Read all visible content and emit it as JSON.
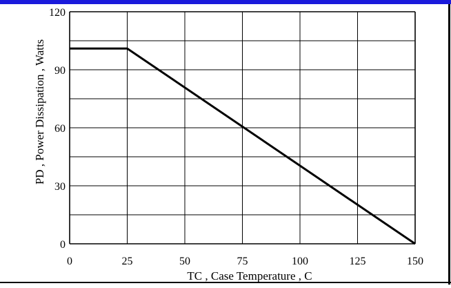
{
  "chart_data": {
    "type": "line",
    "xlabel": "TC , Case Temperature , C",
    "ylabel": "PD , Power Dissipation ,  Watts",
    "xlim": [
      0,
      150
    ],
    "ylim": [
      0,
      120
    ],
    "x_ticks": [
      0,
      25,
      50,
      75,
      100,
      125,
      150
    ],
    "y_ticks": [
      0,
      30,
      60,
      90,
      120
    ],
    "grid": true,
    "x_grid_step": 25,
    "y_grid_step": 15,
    "series": [
      {
        "x": [
          0,
          25,
          150
        ],
        "y": [
          101,
          101,
          0
        ]
      }
    ]
  },
  "colors": {
    "top_bar": "#1a1adc",
    "line": "#000000",
    "grid": "#000000"
  }
}
